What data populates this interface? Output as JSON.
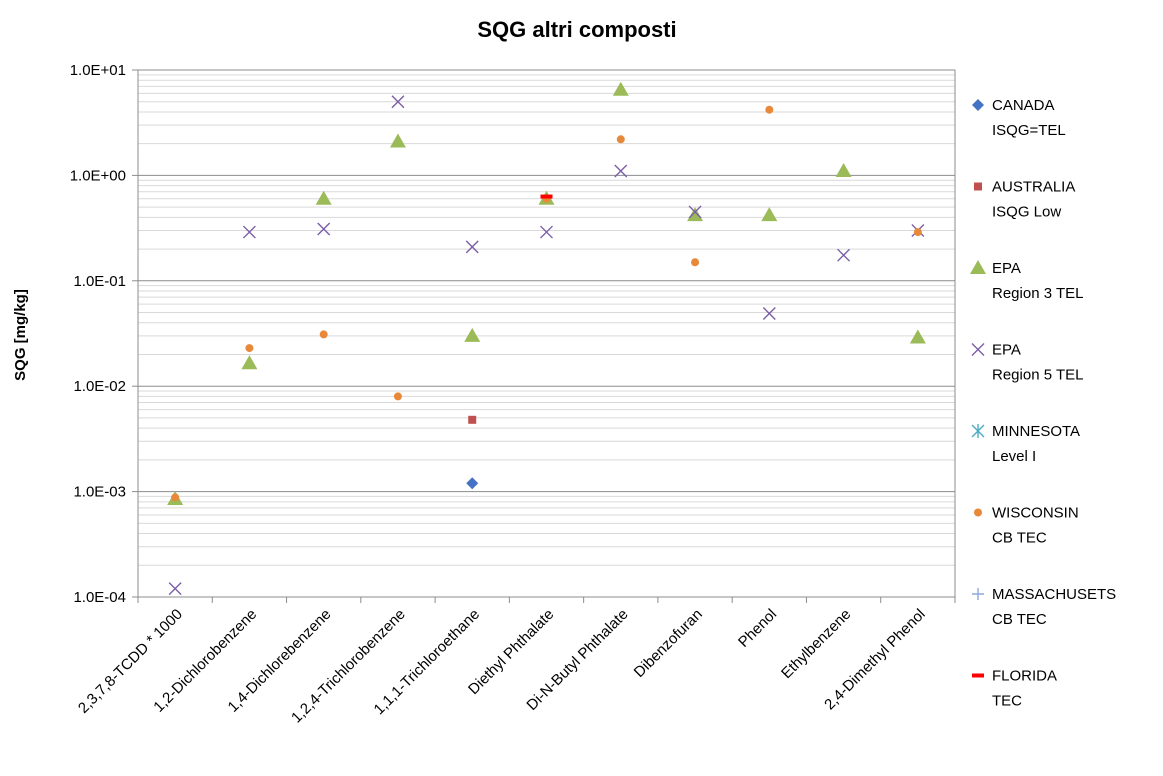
{
  "chart_data": {
    "type": "scatter",
    "title": "SQG altri composti",
    "xlabel": "",
    "ylabel": "SQG [mg/kg]",
    "yscale": "log",
    "ylim": [
      0.0001,
      10
    ],
    "yticks": [
      "1.0E-04",
      "1.0E-03",
      "1.0E-02",
      "1.0E-01",
      "1.0E+00",
      "1.0E+01"
    ],
    "grid": true,
    "legend_position": "right",
    "categories": [
      "2,3,7,8-TCDD * 1000",
      "1,2-Dichlorobenzene",
      "1,4-Dichlorebenzene",
      "1,2,4-Trichlorobenzene",
      "1,1,1-Trichloroethane",
      "Diethyl Phthalate",
      "Di-N-Butyl Phthalate",
      "Dibenzofuran",
      "Phenol",
      "Ethylbenzene",
      "2,4-Dimethyl Phenol"
    ],
    "series": [
      {
        "name": [
          "CANADA",
          "ISQG=TEL"
        ],
        "marker": "diamond",
        "color": "#4472C4",
        "values": [
          null,
          null,
          null,
          null,
          0.0012,
          null,
          null,
          null,
          null,
          null,
          null
        ]
      },
      {
        "name": [
          "AUSTRALIA",
          "ISQG Low"
        ],
        "marker": "square",
        "color": "#C0504D",
        "values": [
          null,
          null,
          null,
          null,
          0.0048,
          null,
          null,
          null,
          null,
          null,
          null
        ]
      },
      {
        "name": [
          "EPA",
          "Region 3 TEL"
        ],
        "marker": "triangle",
        "color": "#9BBB59",
        "values": [
          0.00085,
          0.0165,
          0.6,
          2.1,
          0.03,
          0.6,
          6.5,
          0.42,
          0.42,
          1.1,
          0.029
        ]
      },
      {
        "name": [
          "EPA",
          "Region 5 TEL"
        ],
        "marker": "x",
        "color": "#7B5FA6",
        "values": [
          0.00012,
          0.29,
          0.31,
          5.0,
          0.21,
          0.29,
          1.1,
          0.45,
          0.049,
          0.175,
          0.3
        ]
      },
      {
        "name": [
          "MINNESOTA",
          "Level I"
        ],
        "marker": "star",
        "color": "#4BACC6",
        "values": [
          null,
          null,
          null,
          null,
          null,
          null,
          null,
          null,
          null,
          null,
          null
        ]
      },
      {
        "name": [
          "WISCONSIN",
          "CB TEC"
        ],
        "marker": "circle",
        "color": "#E8893A",
        "values": [
          0.00088,
          0.023,
          0.031,
          0.008,
          null,
          0.6,
          2.2,
          0.15,
          4.2,
          null,
          0.29
        ]
      },
      {
        "name": [
          "MASSACHUSETS",
          "CB TEC"
        ],
        "marker": "plus",
        "color": "#8EA9DB",
        "values": [
          null,
          null,
          null,
          null,
          null,
          null,
          null,
          null,
          null,
          null,
          null
        ]
      },
      {
        "name": [
          "FLORIDA",
          "TEC"
        ],
        "marker": "dash",
        "color": "#FF0000",
        "values": [
          null,
          null,
          null,
          null,
          null,
          0.63,
          null,
          null,
          null,
          null,
          null
        ]
      }
    ]
  }
}
